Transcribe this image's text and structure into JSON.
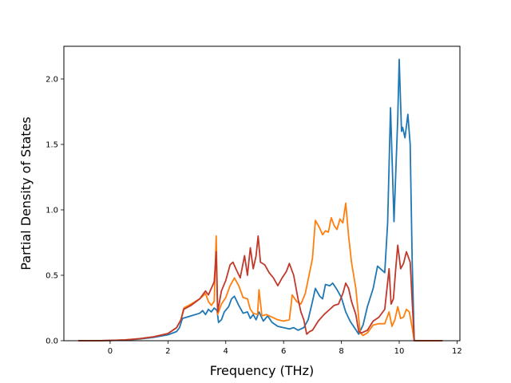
{
  "chart_data": {
    "type": "line",
    "title": "",
    "xlabel": "Frequency (THz)",
    "ylabel": "Partial Density of States",
    "xlim": [
      -1.6,
      12.1
    ],
    "ylim": [
      0,
      2.25
    ],
    "xticks": [
      0,
      2,
      4,
      6,
      8,
      10,
      12
    ],
    "yticks": [
      0.0,
      0.5,
      1.0,
      1.5,
      2.0
    ],
    "xtick_labels": [
      "0",
      "2",
      "4",
      "6",
      "8",
      "10",
      "12"
    ],
    "ytick_labels": [
      "0.0",
      "0.5",
      "1.0",
      "1.5",
      "2.0"
    ],
    "grid": false,
    "legend": null,
    "series": [
      {
        "color": "#1f77b4",
        "points": [
          [
            -1.1,
            0
          ],
          [
            -0.5,
            0
          ],
          [
            0,
            0.002
          ],
          [
            0.5,
            0.005
          ],
          [
            1.0,
            0.012
          ],
          [
            1.5,
            0.025
          ],
          [
            2.0,
            0.045
          ],
          [
            2.3,
            0.07
          ],
          [
            2.4,
            0.1
          ],
          [
            2.5,
            0.17
          ],
          [
            2.8,
            0.19
          ],
          [
            3.1,
            0.21
          ],
          [
            3.2,
            0.23
          ],
          [
            3.3,
            0.2
          ],
          [
            3.4,
            0.24
          ],
          [
            3.5,
            0.22
          ],
          [
            3.6,
            0.25
          ],
          [
            3.7,
            0.23
          ],
          [
            3.75,
            0.14
          ],
          [
            3.85,
            0.16
          ],
          [
            3.95,
            0.22
          ],
          [
            4.1,
            0.26
          ],
          [
            4.2,
            0.32
          ],
          [
            4.3,
            0.34
          ],
          [
            4.45,
            0.27
          ],
          [
            4.6,
            0.21
          ],
          [
            4.75,
            0.22
          ],
          [
            4.85,
            0.17
          ],
          [
            4.95,
            0.2
          ],
          [
            5.05,
            0.16
          ],
          [
            5.15,
            0.22
          ],
          [
            5.3,
            0.15
          ],
          [
            5.45,
            0.19
          ],
          [
            5.6,
            0.14
          ],
          [
            5.8,
            0.11
          ],
          [
            6.0,
            0.1
          ],
          [
            6.2,
            0.09
          ],
          [
            6.35,
            0.1
          ],
          [
            6.5,
            0.08
          ],
          [
            6.7,
            0.1
          ],
          [
            6.85,
            0.16
          ],
          [
            7.0,
            0.3
          ],
          [
            7.1,
            0.4
          ],
          [
            7.25,
            0.34
          ],
          [
            7.35,
            0.32
          ],
          [
            7.45,
            0.43
          ],
          [
            7.6,
            0.42
          ],
          [
            7.7,
            0.44
          ],
          [
            7.85,
            0.39
          ],
          [
            8.0,
            0.33
          ],
          [
            8.15,
            0.22
          ],
          [
            8.3,
            0.15
          ],
          [
            8.45,
            0.1
          ],
          [
            8.6,
            0.05
          ],
          [
            8.75,
            0.12
          ],
          [
            8.9,
            0.26
          ],
          [
            9.1,
            0.4
          ],
          [
            9.25,
            0.57
          ],
          [
            9.4,
            0.54
          ],
          [
            9.5,
            0.52
          ],
          [
            9.6,
            0.9
          ],
          [
            9.7,
            1.78
          ],
          [
            9.82,
            0.91
          ],
          [
            9.95,
            1.7
          ],
          [
            10.0,
            2.15
          ],
          [
            10.08,
            1.6
          ],
          [
            10.12,
            1.63
          ],
          [
            10.2,
            1.55
          ],
          [
            10.3,
            1.73
          ],
          [
            10.38,
            1.5
          ],
          [
            10.45,
            0.6
          ],
          [
            10.52,
            0
          ],
          [
            10.8,
            0
          ],
          [
            11.5,
            0
          ]
        ]
      },
      {
        "color": "#ff7f0e",
        "points": [
          [
            -1.1,
            0
          ],
          [
            -0.5,
            0
          ],
          [
            0,
            0.002
          ],
          [
            0.5,
            0.006
          ],
          [
            1.0,
            0.015
          ],
          [
            1.5,
            0.03
          ],
          [
            2.0,
            0.055
          ],
          [
            2.3,
            0.1
          ],
          [
            2.45,
            0.16
          ],
          [
            2.55,
            0.25
          ],
          [
            2.8,
            0.28
          ],
          [
            3.1,
            0.32
          ],
          [
            3.3,
            0.36
          ],
          [
            3.4,
            0.3
          ],
          [
            3.5,
            0.27
          ],
          [
            3.6,
            0.3
          ],
          [
            3.67,
            0.8
          ],
          [
            3.72,
            0.2
          ],
          [
            3.85,
            0.28
          ],
          [
            4.0,
            0.33
          ],
          [
            4.15,
            0.42
          ],
          [
            4.3,
            0.48
          ],
          [
            4.45,
            0.42
          ],
          [
            4.6,
            0.33
          ],
          [
            4.75,
            0.32
          ],
          [
            4.85,
            0.24
          ],
          [
            4.95,
            0.21
          ],
          [
            5.1,
            0.2
          ],
          [
            5.15,
            0.39
          ],
          [
            5.25,
            0.19
          ],
          [
            5.4,
            0.2
          ],
          [
            5.6,
            0.18
          ],
          [
            5.8,
            0.16
          ],
          [
            6.0,
            0.15
          ],
          [
            6.2,
            0.16
          ],
          [
            6.3,
            0.35
          ],
          [
            6.45,
            0.3
          ],
          [
            6.6,
            0.28
          ],
          [
            6.75,
            0.36
          ],
          [
            6.9,
            0.52
          ],
          [
            7.0,
            0.63
          ],
          [
            7.1,
            0.92
          ],
          [
            7.25,
            0.86
          ],
          [
            7.35,
            0.81
          ],
          [
            7.45,
            0.84
          ],
          [
            7.55,
            0.83
          ],
          [
            7.65,
            0.94
          ],
          [
            7.75,
            0.88
          ],
          [
            7.85,
            0.85
          ],
          [
            7.95,
            0.93
          ],
          [
            8.05,
            0.9
          ],
          [
            8.15,
            1.05
          ],
          [
            8.25,
            0.8
          ],
          [
            8.35,
            0.6
          ],
          [
            8.5,
            0.4
          ],
          [
            8.65,
            0.06
          ],
          [
            8.75,
            0.04
          ],
          [
            8.9,
            0.06
          ],
          [
            9.1,
            0.12
          ],
          [
            9.3,
            0.13
          ],
          [
            9.5,
            0.13
          ],
          [
            9.65,
            0.22
          ],
          [
            9.75,
            0.11
          ],
          [
            9.85,
            0.16
          ],
          [
            9.95,
            0.26
          ],
          [
            10.05,
            0.17
          ],
          [
            10.15,
            0.18
          ],
          [
            10.25,
            0.24
          ],
          [
            10.35,
            0.22
          ],
          [
            10.45,
            0.1
          ],
          [
            10.52,
            0
          ],
          [
            10.8,
            0
          ],
          [
            11.5,
            0
          ]
        ]
      },
      {
        "color": "#c0392b",
        "points": [
          [
            -1.1,
            0
          ],
          [
            -0.5,
            0
          ],
          [
            0,
            0.002
          ],
          [
            0.5,
            0.006
          ],
          [
            1.0,
            0.015
          ],
          [
            1.5,
            0.03
          ],
          [
            2.0,
            0.055
          ],
          [
            2.3,
            0.1
          ],
          [
            2.45,
            0.16
          ],
          [
            2.55,
            0.24
          ],
          [
            2.8,
            0.27
          ],
          [
            3.1,
            0.32
          ],
          [
            3.3,
            0.38
          ],
          [
            3.4,
            0.35
          ],
          [
            3.5,
            0.4
          ],
          [
            3.6,
            0.45
          ],
          [
            3.67,
            0.68
          ],
          [
            3.72,
            0.22
          ],
          [
            3.85,
            0.38
          ],
          [
            4.0,
            0.46
          ],
          [
            4.15,
            0.58
          ],
          [
            4.25,
            0.6
          ],
          [
            4.35,
            0.55
          ],
          [
            4.5,
            0.48
          ],
          [
            4.65,
            0.65
          ],
          [
            4.75,
            0.5
          ],
          [
            4.85,
            0.71
          ],
          [
            4.95,
            0.55
          ],
          [
            5.05,
            0.65
          ],
          [
            5.12,
            0.8
          ],
          [
            5.2,
            0.6
          ],
          [
            5.35,
            0.58
          ],
          [
            5.5,
            0.52
          ],
          [
            5.65,
            0.48
          ],
          [
            5.8,
            0.42
          ],
          [
            5.95,
            0.48
          ],
          [
            6.1,
            0.53
          ],
          [
            6.2,
            0.59
          ],
          [
            6.35,
            0.5
          ],
          [
            6.5,
            0.32
          ],
          [
            6.6,
            0.22
          ],
          [
            6.7,
            0.16
          ],
          [
            6.8,
            0.05
          ],
          [
            6.9,
            0.07
          ],
          [
            7.0,
            0.08
          ],
          [
            7.2,
            0.15
          ],
          [
            7.4,
            0.2
          ],
          [
            7.6,
            0.24
          ],
          [
            7.75,
            0.27
          ],
          [
            7.9,
            0.28
          ],
          [
            8.05,
            0.36
          ],
          [
            8.15,
            0.44
          ],
          [
            8.25,
            0.4
          ],
          [
            8.35,
            0.3
          ],
          [
            8.5,
            0.2
          ],
          [
            8.6,
            0.07
          ],
          [
            8.7,
            0.06
          ],
          [
            8.9,
            0.08
          ],
          [
            9.1,
            0.15
          ],
          [
            9.3,
            0.18
          ],
          [
            9.5,
            0.24
          ],
          [
            9.65,
            0.55
          ],
          [
            9.72,
            0.28
          ],
          [
            9.8,
            0.32
          ],
          [
            9.88,
            0.55
          ],
          [
            9.95,
            0.73
          ],
          [
            10.05,
            0.55
          ],
          [
            10.15,
            0.59
          ],
          [
            10.25,
            0.68
          ],
          [
            10.38,
            0.6
          ],
          [
            10.45,
            0.3
          ],
          [
            10.52,
            0
          ],
          [
            10.8,
            0
          ],
          [
            11.5,
            0
          ]
        ]
      }
    ]
  }
}
